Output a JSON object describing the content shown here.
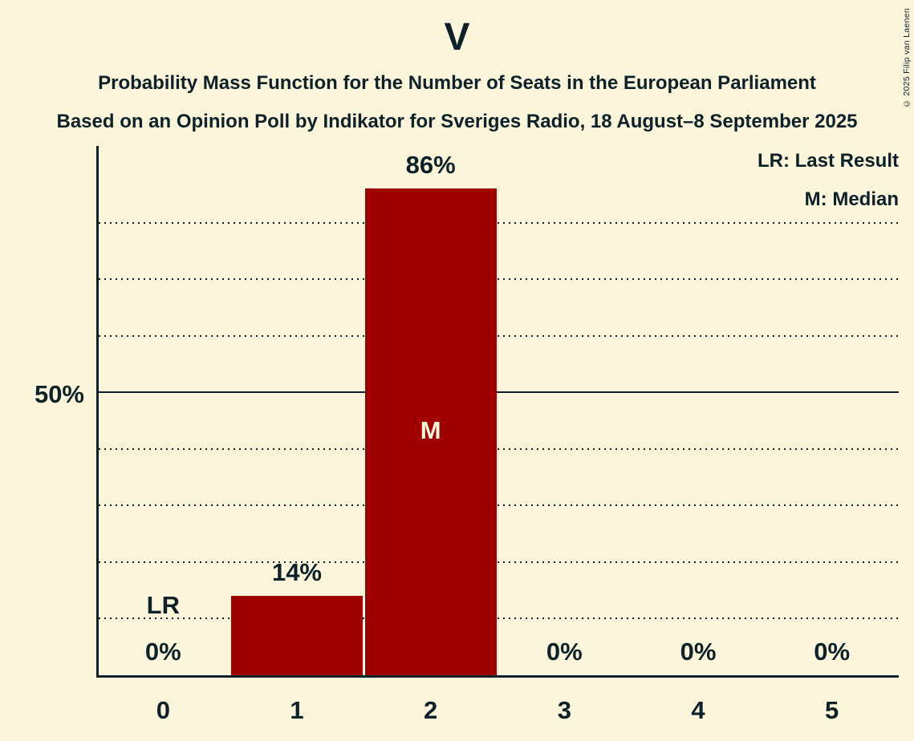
{
  "title": "V",
  "subtitle1": "Probability Mass Function for the Number of Seats in the European Parliament",
  "subtitle2": "Based on an Opinion Poll by Indikator for Sveriges Radio, 18 August–8 September 2025",
  "copyright": "© 2025 Filip van Laenen",
  "legend": {
    "lr": "LR: Last Result",
    "m": "M: Median"
  },
  "colors": {
    "background": "#fbf5dc",
    "bar": "#a00000",
    "text": "#0e2128",
    "bar_inside_label": "#fbf5dc"
  },
  "chart_data": {
    "type": "bar",
    "title": "V",
    "xlabel": "",
    "ylabel": "",
    "categories": [
      "0",
      "1",
      "2",
      "3",
      "4",
      "5"
    ],
    "values": [
      0,
      14,
      86,
      0,
      0,
      0
    ],
    "bar_labels": [
      "0%",
      "14%",
      "86%",
      "0%",
      "0%",
      "0%"
    ],
    "annotations": [
      {
        "category_index": 0,
        "text": "LR",
        "meaning": "Last Result",
        "placement": "above"
      },
      {
        "category_index": 2,
        "text": "M",
        "meaning": "Median",
        "placement": "inside"
      }
    ],
    "ylim": [
      0,
      94
    ],
    "ytick": {
      "value": 50,
      "label": "50%"
    },
    "gridlines_dotted_percent": [
      10,
      20,
      30,
      40,
      60,
      70,
      80
    ],
    "gridline_solid_percent": 50,
    "grid": true,
    "legend_position": "top-right"
  }
}
